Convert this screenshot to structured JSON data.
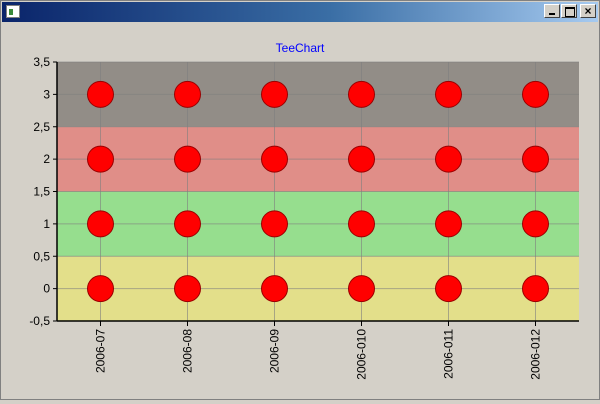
{
  "window": {
    "title": "",
    "buttons": {
      "minimize_icon": "minimize-icon",
      "maximize_icon": "maximize-icon",
      "close_icon": "close-icon"
    }
  },
  "chart_data": {
    "type": "scatter",
    "title": "TeeChart",
    "xlabel": "",
    "ylabel": "",
    "categories": [
      "2006-07",
      "2006-08",
      "2006-09",
      "2006-010",
      "2006-011",
      "2006-012"
    ],
    "ylim": [
      -0.5,
      3.5
    ],
    "y_ticks": [
      -0.5,
      0,
      0.5,
      1,
      1.5,
      2,
      2.5,
      3,
      3.5
    ],
    "y_tick_labels": [
      "-0,5",
      "0",
      "0,5",
      "1",
      "1,5",
      "2",
      "2,5",
      "3",
      "3,5"
    ],
    "grid": true,
    "series": [
      {
        "values": [
          0,
          0,
          0,
          0,
          0,
          0
        ]
      },
      {
        "values": [
          1,
          1,
          1,
          1,
          1,
          1
        ]
      },
      {
        "values": [
          2,
          2,
          2,
          2,
          2,
          2
        ]
      },
      {
        "values": [
          3,
          3,
          3,
          3,
          3,
          3
        ]
      }
    ],
    "bands": [
      {
        "from": -0.5,
        "to": 0.5,
        "color": "#e3df8a"
      },
      {
        "from": 0.5,
        "to": 1.5,
        "color": "#96de8e"
      },
      {
        "from": 1.5,
        "to": 2.5,
        "color": "#e08e88"
      },
      {
        "from": 2.5,
        "to": 3.5,
        "color": "#928d87"
      }
    ],
    "colors": {
      "point_fill": "#ff0000",
      "point_stroke": "#9a0000",
      "title": "#0000ff",
      "grid": "#7f7f7f",
      "axis": "#000000"
    }
  }
}
